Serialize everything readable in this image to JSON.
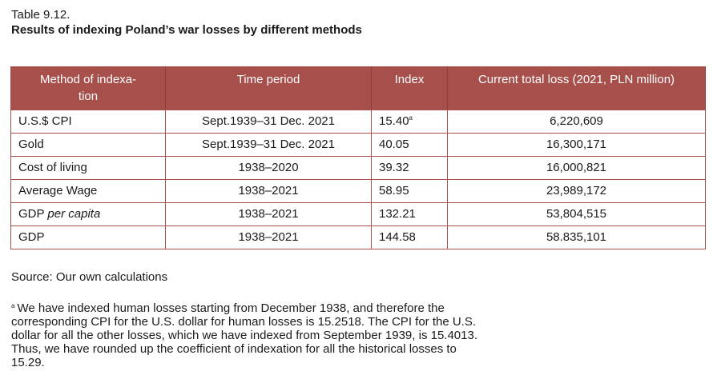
{
  "caption": {
    "table_number": "Table 9.12.",
    "title": "Results of indexing Poland’s war losses by different methods"
  },
  "table": {
    "headers": {
      "method": "Method of indexa-tion",
      "method_line1": "Method of indexa-",
      "method_line2": "tion",
      "period": "Time period",
      "index": "Index",
      "loss": "Current total loss (2021, PLN million)"
    },
    "rows": [
      {
        "method": "U.S.$ CPI",
        "method_suffix": "",
        "period": "Sept.1939–31 Dec. 2021",
        "index": "15.40",
        "index_note": "a",
        "loss": "6,220,609"
      },
      {
        "method": "Gold",
        "method_suffix": "",
        "period": "Sept.1939–31 Dec. 2021",
        "index": "40.05",
        "index_note": "",
        "loss": "16,300,171"
      },
      {
        "method": "Cost of living",
        "method_suffix": "",
        "period": "1938–2020",
        "index": "39.32",
        "index_note": "",
        "loss": "16,000,821"
      },
      {
        "method": "Average Wage",
        "method_suffix": "",
        "period": "1938–2021",
        "index": "58.95",
        "index_note": "",
        "loss": "23,989,172"
      },
      {
        "method": "GDP ",
        "method_suffix": "per capita",
        "period": "1938–2021",
        "index": "132.21",
        "index_note": "",
        "loss": "53,804,515"
      },
      {
        "method": "GDP",
        "method_suffix": "",
        "period": "1938–2021",
        "index": "144.58",
        "index_note": "",
        "loss": "58.835,101"
      }
    ]
  },
  "source": "Source: Our own calculations",
  "footnote": {
    "mark": "a",
    "text": "We have indexed human losses starting from December 1938, and therefore the corresponding CPI for the U.S. dollar for human losses is 15.2518. The CPI for the U.S. dollar for all the other losses, which we have indexed from September 1939, is 15.4013. Thus, we have rounded up the coefficient of indexation for all the historical losses to 15.29."
  },
  "colors": {
    "header_bg": "#a7504b",
    "header_text": "#ffffff",
    "border": "#a7504b"
  }
}
